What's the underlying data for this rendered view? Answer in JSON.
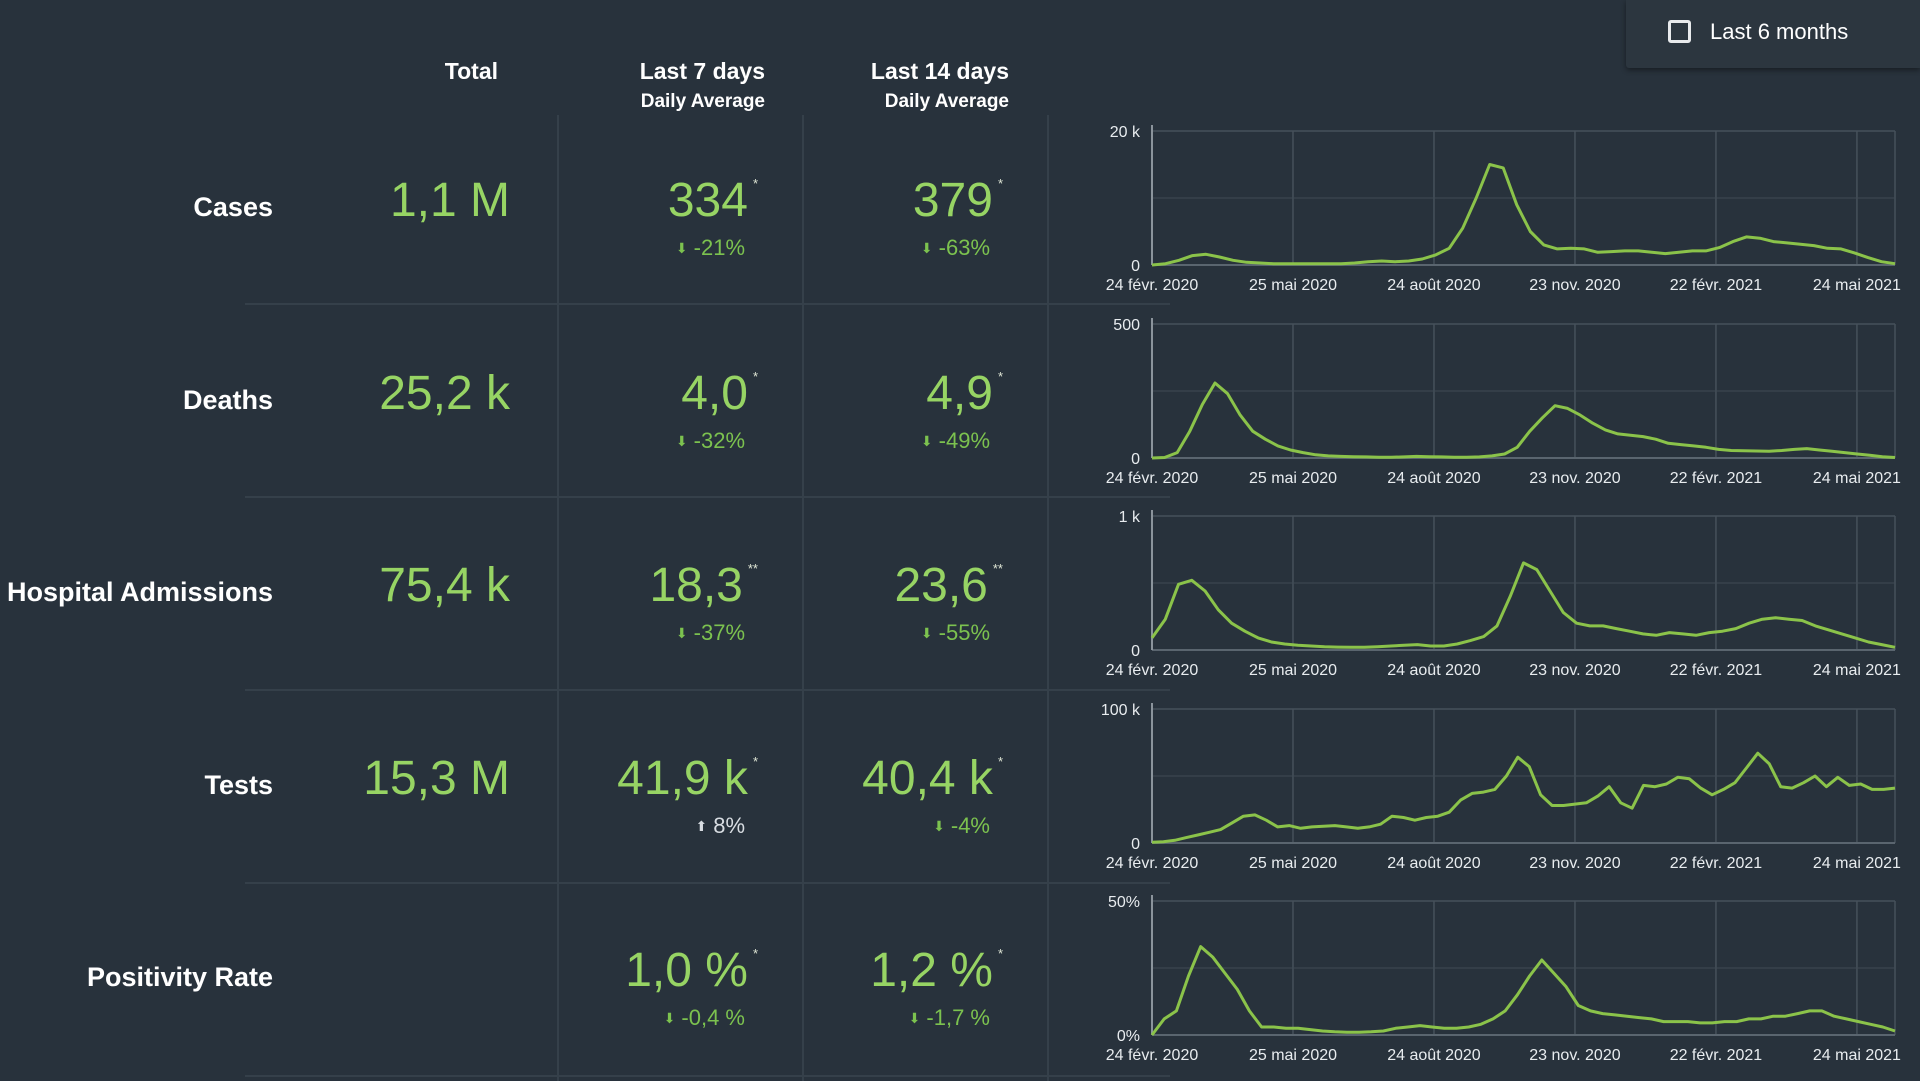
{
  "toggle": {
    "label": "Last 6 months",
    "checked": false
  },
  "headers": {
    "total": "Total",
    "last7": "Last 7 days",
    "last7_sub": "Daily Average",
    "last14": "Last 14 days",
    "last14_sub": "Daily Average"
  },
  "colors": {
    "line": "#8bc34a",
    "value": "#97d464",
    "change_down": "#7cc24f",
    "change_up": "#d8dde2"
  },
  "rows": [
    {
      "label": "Cases",
      "total": "1,1 M",
      "last7": {
        "value": "334",
        "mark": "*",
        "change": "-21%",
        "direction": "down"
      },
      "last14": {
        "value": "379",
        "mark": "*",
        "change": "-63%",
        "direction": "down"
      }
    },
    {
      "label": "Deaths",
      "total": "25,2 k",
      "last7": {
        "value": "4,0",
        "mark": "*",
        "change": "-32%",
        "direction": "down"
      },
      "last14": {
        "value": "4,9",
        "mark": "*",
        "change": "-49%",
        "direction": "down"
      }
    },
    {
      "label": "Hospital Admissions",
      "total": "75,4 k",
      "last7": {
        "value": "18,3",
        "mark": "**",
        "change": "-37%",
        "direction": "down"
      },
      "last14": {
        "value": "23,6",
        "mark": "**",
        "change": "-55%",
        "direction": "down"
      }
    },
    {
      "label": "Tests",
      "total": "15,3 M",
      "last7": {
        "value": "41,9 k",
        "mark": "*",
        "change": "8%",
        "direction": "up"
      },
      "last14": {
        "value": "40,4 k",
        "mark": "*",
        "change": "-4%",
        "direction": "down"
      }
    },
    {
      "label": "Positivity Rate",
      "total": "",
      "last7": {
        "value": "1,0 %",
        "mark": "*",
        "change": "-0,4 %",
        "direction": "down"
      },
      "last14": {
        "value": "1,2 %",
        "mark": "*",
        "change": "-1,7 %",
        "direction": "down"
      }
    }
  ],
  "chart_data": [
    {
      "type": "line",
      "ylim": [
        0,
        20000
      ],
      "yticks": [
        {
          "value": 0,
          "label": "0"
        },
        {
          "value": 20000,
          "label": "20 k"
        }
      ],
      "xticks": [
        "24 févr. 2020",
        "25 mai 2020",
        "24 août 2020",
        "23 nov. 2020",
        "22 févr. 2021",
        "24 mai 2021"
      ],
      "grid": true,
      "series": [
        {
          "values": [
            0,
            200,
            700,
            1400,
            1600,
            1200,
            700,
            400,
            300,
            200,
            200,
            200,
            200,
            200,
            200,
            300,
            500,
            600,
            500,
            600,
            900,
            1500,
            2500,
            5500,
            10000,
            15000,
            14500,
            9000,
            5000,
            3000,
            2400,
            2500,
            2400,
            1900,
            2000,
            2100,
            2100,
            1900,
            1700,
            1900,
            2100,
            2100,
            2600,
            3500,
            4200,
            4000,
            3500,
            3300,
            3100,
            2900,
            2500,
            2400,
            1800,
            1100,
            500,
            200
          ]
        }
      ]
    },
    {
      "type": "line",
      "ylim": [
        0,
        500
      ],
      "yticks": [
        {
          "value": 0,
          "label": "0"
        },
        {
          "value": 500,
          "label": "500"
        }
      ],
      "xticks": [
        "24 févr. 2020",
        "25 mai 2020",
        "24 août 2020",
        "23 nov. 2020",
        "22 févr. 2021",
        "24 mai 2021"
      ],
      "grid": true,
      "series": [
        {
          "values": [
            0,
            2,
            20,
            100,
            200,
            280,
            240,
            160,
            100,
            70,
            45,
            30,
            20,
            12,
            8,
            6,
            5,
            4,
            3,
            3,
            4,
            6,
            5,
            4,
            3,
            3,
            4,
            8,
            15,
            40,
            100,
            150,
            195,
            185,
            160,
            130,
            105,
            90,
            85,
            80,
            70,
            55,
            50,
            45,
            40,
            32,
            28,
            27,
            26,
            25,
            28,
            32,
            35,
            30,
            25,
            20,
            15,
            10,
            5,
            2
          ]
        }
      ]
    },
    {
      "type": "line",
      "ylim": [
        0,
        1000
      ],
      "yticks": [
        {
          "value": 0,
          "label": "0"
        },
        {
          "value": 1000,
          "label": "1 k"
        }
      ],
      "xticks": [
        "24 févr. 2020",
        "25 mai 2020",
        "24 août 2020",
        "23 nov. 2020",
        "22 févr. 2021",
        "24 mai 2021"
      ],
      "grid": true,
      "series": [
        {
          "values": [
            90,
            230,
            490,
            520,
            440,
            300,
            200,
            140,
            90,
            60,
            45,
            35,
            30,
            25,
            22,
            20,
            20,
            25,
            30,
            35,
            40,
            30,
            30,
            45,
            70,
            100,
            180,
            400,
            650,
            600,
            440,
            280,
            200,
            180,
            180,
            160,
            140,
            120,
            110,
            130,
            120,
            110,
            130,
            140,
            160,
            200,
            230,
            240,
            230,
            220,
            180,
            150,
            120,
            90,
            60,
            40,
            20
          ]
        }
      ]
    },
    {
      "type": "line",
      "ylim": [
        0,
        100000
      ],
      "yticks": [
        {
          "value": 0,
          "label": "0"
        },
        {
          "value": 100000,
          "label": "100 k"
        }
      ],
      "xticks": [
        "24 févr. 2020",
        "25 mai 2020",
        "24 août 2020",
        "23 nov. 2020",
        "22 févr. 2021",
        "24 mai 2021"
      ],
      "grid": true,
      "series": [
        {
          "values": [
            500,
            1000,
            2000,
            4000,
            6000,
            8000,
            10000,
            15000,
            20000,
            21000,
            17000,
            12000,
            13000,
            11000,
            12000,
            12500,
            13000,
            12000,
            11000,
            12000,
            14000,
            20000,
            19000,
            17000,
            19000,
            20000,
            23000,
            32000,
            37000,
            38000,
            40000,
            50000,
            64000,
            57000,
            36000,
            28000,
            28000,
            29000,
            30000,
            35000,
            42000,
            30000,
            26000,
            43000,
            42000,
            44000,
            49000,
            48000,
            41000,
            36000,
            40000,
            45000,
            56000,
            67000,
            59000,
            42000,
            41000,
            45000,
            50000,
            42000,
            49000,
            43000,
            44000,
            40000,
            40000,
            41000
          ]
        }
      ]
    },
    {
      "type": "line",
      "ylim": [
        0,
        50
      ],
      "yticks": [
        {
          "value": 0,
          "label": "0%"
        },
        {
          "value": 50,
          "label": "50%"
        }
      ],
      "xticks": [
        "24 févr. 2020",
        "25 mai 2020",
        "24 août 2020",
        "23 nov. 2020",
        "22 févr. 2021",
        "24 mai 2021"
      ],
      "grid": true,
      "series": [
        {
          "values": [
            0,
            6,
            9,
            22,
            33,
            29,
            23,
            17,
            9,
            3,
            3,
            2.5,
            2.5,
            2,
            1.5,
            1.2,
            1,
            1,
            1.2,
            1.5,
            2.5,
            3,
            3.5,
            3,
            2.5,
            2.5,
            3,
            4,
            6,
            9,
            15,
            22,
            28,
            23,
            18,
            11,
            9,
            8,
            7.5,
            7,
            6.5,
            6,
            5,
            5,
            5,
            4.5,
            4.5,
            5,
            5,
            6,
            6,
            7,
            7,
            8,
            9,
            9,
            7,
            6,
            5,
            4,
            3,
            1.5
          ]
        }
      ]
    }
  ]
}
